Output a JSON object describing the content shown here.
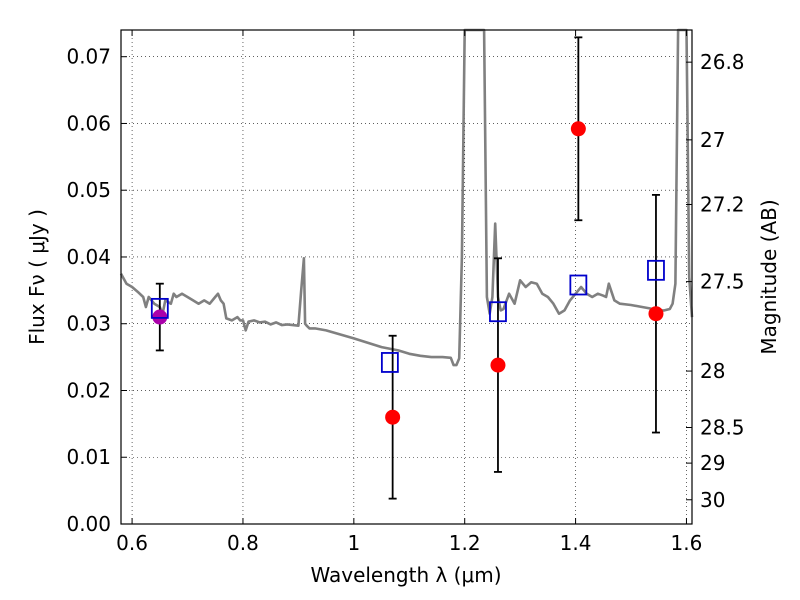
{
  "chart_data": {
    "type": "scatter",
    "xlabel": "Wavelength  λ (μm)",
    "ylabel": "Flux  Fν  ( μJy )",
    "ylabel_right": "Magnitude (AB)",
    "xlim": [
      0.58,
      1.61
    ],
    "ylim": [
      0.0,
      0.074
    ],
    "x_ticks": [
      {
        "value": 0.6,
        "label": "0.6"
      },
      {
        "value": 0.8,
        "label": "0.8"
      },
      {
        "value": 1.0,
        "label": "1"
      },
      {
        "value": 1.2,
        "label": "1.2"
      },
      {
        "value": 1.4,
        "label": "1.4"
      },
      {
        "value": 1.6,
        "label": "1.6"
      }
    ],
    "y_ticks": [
      {
        "value": 0.0,
        "label": "0.00"
      },
      {
        "value": 0.01,
        "label": "0.01"
      },
      {
        "value": 0.02,
        "label": "0.02"
      },
      {
        "value": 0.03,
        "label": "0.03"
      },
      {
        "value": 0.04,
        "label": "0.04"
      },
      {
        "value": 0.05,
        "label": "0.05"
      },
      {
        "value": 0.06,
        "label": "0.06"
      },
      {
        "value": 0.07,
        "label": "0.07"
      }
    ],
    "right_ticks": [
      {
        "mag": 26.8,
        "label": "26.8"
      },
      {
        "mag": 27.0,
        "label": "27"
      },
      {
        "mag": 27.2,
        "label": "27.2"
      },
      {
        "mag": 27.5,
        "label": "27.5"
      },
      {
        "mag": 28.0,
        "label": "28"
      },
      {
        "mag": 28.5,
        "label": "28.5"
      },
      {
        "mag": 29.0,
        "label": "29"
      },
      {
        "mag": 30.0,
        "label": "30"
      }
    ],
    "grid": true,
    "series": [
      {
        "style": "line",
        "color": "#808080",
        "x": [
          0.58,
          0.59,
          0.6,
          0.61,
          0.62,
          0.625,
          0.63,
          0.64,
          0.65,
          0.655,
          0.66,
          0.67,
          0.675,
          0.68,
          0.69,
          0.7,
          0.71,
          0.72,
          0.73,
          0.74,
          0.75,
          0.755,
          0.76,
          0.765,
          0.77,
          0.78,
          0.79,
          0.795,
          0.8,
          0.805,
          0.81,
          0.82,
          0.83,
          0.84,
          0.85,
          0.86,
          0.87,
          0.88,
          0.89,
          0.9,
          0.905,
          0.91,
          0.912,
          0.915,
          0.92,
          0.93,
          0.95,
          1.0,
          1.05,
          1.08,
          1.1,
          1.12,
          1.14,
          1.16,
          1.175,
          1.18,
          1.185,
          1.19,
          1.195,
          1.2,
          1.205,
          1.21,
          1.23,
          1.235,
          1.24,
          1.245,
          1.25,
          1.255,
          1.26,
          1.265,
          1.27,
          1.28,
          1.29,
          1.3,
          1.305,
          1.31,
          1.32,
          1.33,
          1.34,
          1.35,
          1.36,
          1.37,
          1.38,
          1.39,
          1.4,
          1.41,
          1.42,
          1.43,
          1.44,
          1.45,
          1.455,
          1.46,
          1.47,
          1.48,
          1.5,
          1.52,
          1.54,
          1.55,
          1.56,
          1.57,
          1.575,
          1.58,
          1.585,
          1.59,
          1.595,
          1.6,
          1.605,
          1.61
        ],
        "y": [
          0.0375,
          0.036,
          0.0355,
          0.0348,
          0.034,
          0.0325,
          0.034,
          0.033,
          0.0325,
          0.0315,
          0.0335,
          0.033,
          0.0345,
          0.034,
          0.0345,
          0.034,
          0.0335,
          0.033,
          0.0335,
          0.033,
          0.034,
          0.0345,
          0.0335,
          0.033,
          0.0308,
          0.0305,
          0.031,
          0.0305,
          0.0305,
          0.029,
          0.0303,
          0.0305,
          0.0302,
          0.0303,
          0.0299,
          0.0302,
          0.0298,
          0.0299,
          0.0298,
          0.0297,
          0.035,
          0.0398,
          0.03,
          0.0297,
          0.0293,
          0.0293,
          0.029,
          0.0278,
          0.0265,
          0.026,
          0.0255,
          0.0252,
          0.025,
          0.025,
          0.0249,
          0.0238,
          0.0238,
          0.0248,
          0.04,
          0.074,
          0.074,
          0.074,
          0.074,
          0.074,
          0.034,
          0.0315,
          0.034,
          0.045,
          0.034,
          0.032,
          0.0322,
          0.0345,
          0.033,
          0.0365,
          0.036,
          0.0355,
          0.0362,
          0.036,
          0.0345,
          0.034,
          0.033,
          0.0315,
          0.032,
          0.0335,
          0.0345,
          0.0355,
          0.0345,
          0.034,
          0.0345,
          0.0342,
          0.034,
          0.036,
          0.0335,
          0.033,
          0.0328,
          0.0325,
          0.0322,
          0.032,
          0.032,
          0.0322,
          0.033,
          0.036,
          0.074,
          0.074,
          0.074,
          0.074,
          0.037,
          0.031
        ]
      },
      {
        "style": "points-errorbar",
        "color": "#ff0000",
        "points": [
          {
            "x": 1.07,
            "y": 0.016,
            "yerr": 0.0122
          },
          {
            "x": 1.26,
            "y": 0.0238,
            "yerr": 0.016
          },
          {
            "x": 1.405,
            "y": 0.0592,
            "yerr": 0.0137
          },
          {
            "x": 1.545,
            "y": 0.0315,
            "yerr": 0.0178
          }
        ]
      },
      {
        "style": "points-errorbar",
        "color": "#aa00aa",
        "points": [
          {
            "x": 0.65,
            "y": 0.031,
            "yerr": 0.005
          }
        ]
      },
      {
        "style": "open-squares",
        "color": "#0000cc",
        "points": [
          {
            "x": 0.65,
            "y": 0.0323
          },
          {
            "x": 1.065,
            "y": 0.0242
          },
          {
            "x": 1.26,
            "y": 0.0318
          },
          {
            "x": 1.405,
            "y": 0.0358
          },
          {
            "x": 1.545,
            "y": 0.038
          }
        ]
      }
    ]
  }
}
